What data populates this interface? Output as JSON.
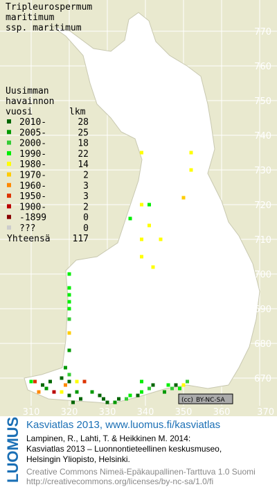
{
  "title": [
    "Tripleurospermum",
    "maritimum",
    "ssp. maritimum"
  ],
  "legend": {
    "heading": [
      "Uusimman",
      "havainnon"
    ],
    "col_period": "vuosi",
    "col_count": "lkm",
    "rows": [
      {
        "label": "2010-",
        "count": 28,
        "color": "#006600"
      },
      {
        "label": "2005-",
        "count": 25,
        "color": "#009900"
      },
      {
        "label": "2000-",
        "count": 18,
        "color": "#33cc33"
      },
      {
        "label": "1990-",
        "count": 22,
        "color": "#00ee00"
      },
      {
        "label": "1980-",
        "count": 14,
        "color": "#ffff00"
      },
      {
        "label": "1970-",
        "count": 2,
        "color": "#ffcc00"
      },
      {
        "label": "1960-",
        "count": 3,
        "color": "#ff8800"
      },
      {
        "label": "1950-",
        "count": 3,
        "color": "#dd3300"
      },
      {
        "label": "1900-",
        "count": 2,
        "color": "#bb0000"
      },
      {
        "label": "-1899",
        "count": 0,
        "color": "#880000"
      },
      {
        "label": "???",
        "count": 0,
        "color": "#cccccc"
      }
    ],
    "total_label": "Yhteensä",
    "total": 117
  },
  "grid": {
    "xticks": [
      310,
      320,
      330,
      340,
      350,
      360,
      370
    ],
    "yticks": [
      670,
      680,
      690,
      700,
      710,
      720,
      730,
      740,
      750,
      760,
      770
    ]
  },
  "records": [
    {
      "x": 339,
      "y": 735,
      "period": 4
    },
    {
      "x": 352,
      "y": 735,
      "period": 4
    },
    {
      "x": 352,
      "y": 730,
      "period": 4
    },
    {
      "x": 339,
      "y": 720,
      "period": 4
    },
    {
      "x": 341,
      "y": 714,
      "period": 4
    },
    {
      "x": 339,
      "y": 710,
      "period": 4
    },
    {
      "x": 344,
      "y": 710,
      "period": 4
    },
    {
      "x": 339,
      "y": 705,
      "period": 4
    },
    {
      "x": 342,
      "y": 702,
      "period": 4
    },
    {
      "x": 350,
      "y": 722,
      "period": 5
    },
    {
      "x": 341,
      "y": 720,
      "period": 3
    },
    {
      "x": 336,
      "y": 716,
      "period": 3
    },
    {
      "x": 320,
      "y": 700,
      "period": 3
    },
    {
      "x": 320,
      "y": 696,
      "period": 3
    },
    {
      "x": 320,
      "y": 694,
      "period": 3
    },
    {
      "x": 320,
      "y": 692,
      "period": 3
    },
    {
      "x": 320,
      "y": 690,
      "period": 3
    },
    {
      "x": 320,
      "y": 687,
      "period": 2
    },
    {
      "x": 320,
      "y": 683,
      "period": 5
    },
    {
      "x": 320,
      "y": 678,
      "period": 1
    },
    {
      "x": 319,
      "y": 673,
      "period": 1
    },
    {
      "x": 320,
      "y": 671,
      "period": 2
    },
    {
      "x": 318,
      "y": 670,
      "period": 0
    },
    {
      "x": 320,
      "y": 669,
      "period": 0
    },
    {
      "x": 322,
      "y": 669,
      "period": 4
    },
    {
      "x": 315,
      "y": 669,
      "period": 0
    },
    {
      "x": 313,
      "y": 668,
      "period": 0
    },
    {
      "x": 311,
      "y": 669,
      "period": 7
    },
    {
      "x": 310,
      "y": 669,
      "period": 3
    },
    {
      "x": 314,
      "y": 667,
      "period": 1
    },
    {
      "x": 316,
      "y": 666,
      "period": 8
    },
    {
      "x": 318,
      "y": 666,
      "period": 4
    },
    {
      "x": 320,
      "y": 665,
      "period": 0
    },
    {
      "x": 322,
      "y": 666,
      "period": 1
    },
    {
      "x": 324,
      "y": 669,
      "period": 7
    },
    {
      "x": 323,
      "y": 664,
      "period": 0
    },
    {
      "x": 321,
      "y": 663,
      "period": 0
    },
    {
      "x": 326,
      "y": 666,
      "period": 1
    },
    {
      "x": 328,
      "y": 665,
      "period": 0
    },
    {
      "x": 329,
      "y": 664,
      "period": 0
    },
    {
      "x": 330,
      "y": 663,
      "period": 0
    },
    {
      "x": 332,
      "y": 663,
      "period": 1
    },
    {
      "x": 333,
      "y": 664,
      "period": 0
    },
    {
      "x": 335,
      "y": 664,
      "period": 2
    },
    {
      "x": 336,
      "y": 665,
      "period": 3
    },
    {
      "x": 338,
      "y": 665,
      "period": 0
    },
    {
      "x": 339,
      "y": 666,
      "period": 3
    },
    {
      "x": 341,
      "y": 667,
      "period": 2
    },
    {
      "x": 342,
      "y": 668,
      "period": 0
    },
    {
      "x": 345,
      "y": 666,
      "period": 1
    },
    {
      "x": 346,
      "y": 668,
      "period": 3
    },
    {
      "x": 347,
      "y": 667,
      "period": 2
    },
    {
      "x": 348,
      "y": 668,
      "period": 0
    },
    {
      "x": 349,
      "y": 667,
      "period": 3
    },
    {
      "x": 350,
      "y": 668,
      "period": 4
    },
    {
      "x": 351,
      "y": 669,
      "period": 2
    },
    {
      "x": 339,
      "y": 669,
      "period": 3
    },
    {
      "x": 319,
      "y": 668,
      "period": 6
    },
    {
      "x": 312,
      "y": 666,
      "period": 6
    }
  ],
  "license_badge": {
    "icon": "(cc)",
    "text": "BY-NC-SA"
  },
  "footer": {
    "logo": "LUOMUS",
    "headline": "Kasviatlas 2013, www.luomus.fi/kasviatlas",
    "citation": [
      "Lampinen, R., Lahti, T. & Heikkinen M. 2014:",
      "Kasviatlas 2013 – Luonnontieteellinen keskusmuseo,",
      "Helsingin Yliopisto, Helsinki."
    ],
    "license": [
      "Creative Commons Nimeä-Epäkaupallinen-Tarttuva 1.0 Suomi",
      "http://creativecommons.org/licenses/by-nc-sa/1.0/fi"
    ]
  }
}
